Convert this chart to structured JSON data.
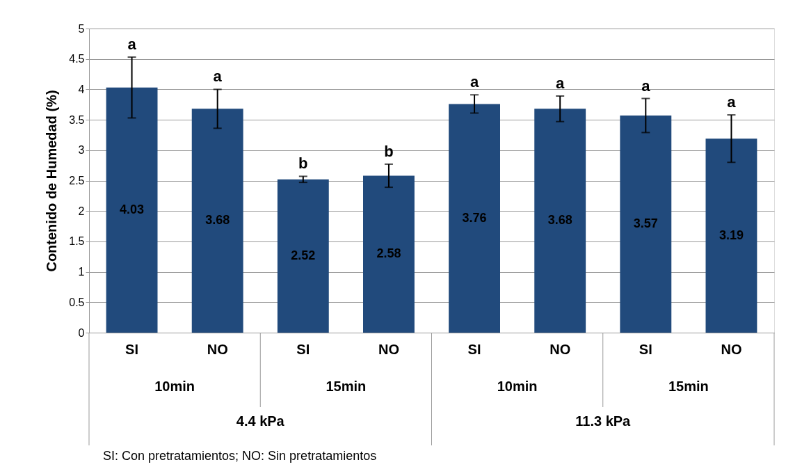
{
  "chart_data": {
    "type": "bar",
    "ylabel": "Contenido de Humedad (%)",
    "categories": [
      "SI",
      "NO",
      "SI",
      "NO",
      "SI",
      "NO",
      "SI",
      "NO"
    ],
    "values": [
      4.03,
      3.68,
      2.52,
      2.58,
      3.76,
      3.68,
      3.57,
      3.19
    ],
    "errors": [
      0.5,
      0.32,
      0.05,
      0.19,
      0.15,
      0.21,
      0.28,
      0.39
    ],
    "color": "#214a7c",
    "data_labels": true,
    "ylim": [
      0,
      5
    ],
    "yticks": [
      0,
      0.5,
      1,
      1.5,
      2,
      2.5,
      3,
      3.5,
      4,
      4.5,
      5
    ],
    "grid": "y",
    "annotations": [
      "a",
      "a",
      "b",
      "b",
      "a",
      "a",
      "a",
      "a",
      "10min",
      "15min",
      "10min",
      "15min",
      "4.4 kPa",
      "11.3 kPa",
      "SI: Con pretratamientos; NO: Sin pretratamientos"
    ]
  }
}
